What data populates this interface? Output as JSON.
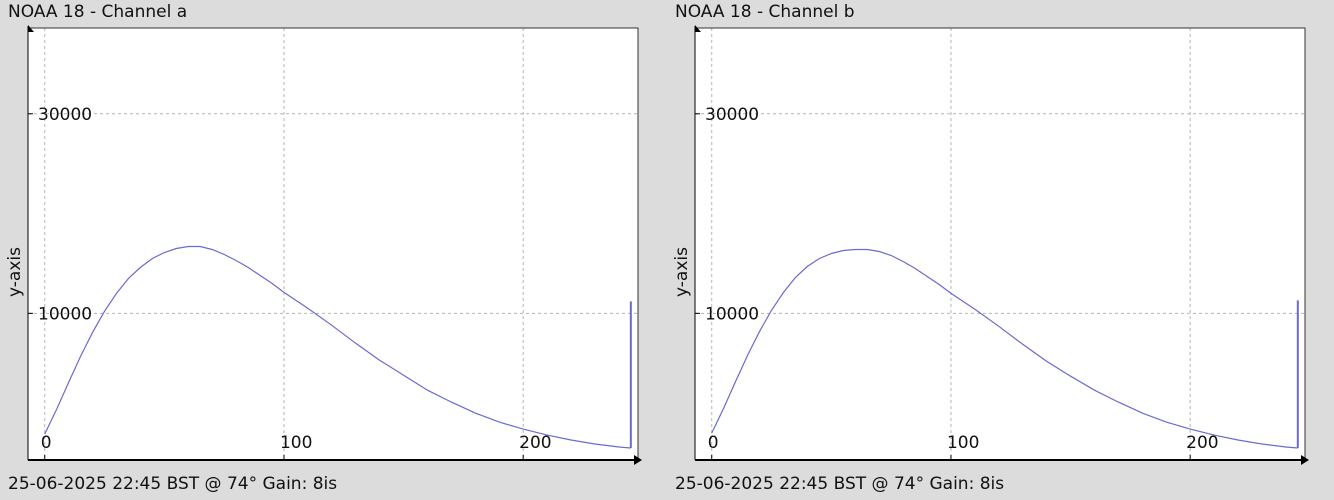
{
  "chart_data": [
    {
      "type": "line",
      "title": "NOAA 18 - Channel a",
      "xlabel": "",
      "ylabel": "y-axis",
      "footer": "25-06-2025 22:45 BST @ 74° Gain: 8is",
      "xlim": [
        -7,
        248
      ],
      "ylim": [
        -4700,
        38600
      ],
      "x_ticks": [
        0,
        100,
        200
      ],
      "y_ticks": [
        10000,
        30000
      ],
      "grid": true,
      "line_color": "#6a6ad2",
      "series": [
        {
          "x": [
            0,
            5,
            10,
            15,
            20,
            25,
            30,
            35,
            40,
            45,
            50,
            55,
            60,
            65,
            70,
            75,
            80,
            85,
            90,
            95,
            100,
            110,
            120,
            130,
            140,
            150,
            160,
            170,
            180,
            190,
            200,
            210,
            220,
            230,
            240,
            245
          ],
          "values": [
            -2100,
            400,
            3100,
            5700,
            8100,
            10200,
            12000,
            13500,
            14600,
            15500,
            16100,
            16500,
            16700,
            16700,
            16400,
            15900,
            15300,
            14600,
            13800,
            13000,
            12100,
            10500,
            8800,
            7000,
            5300,
            3800,
            2300,
            1100,
            0,
            -900,
            -1600,
            -2200,
            -2700,
            -3100,
            -3400,
            -3500
          ]
        }
      ],
      "end_spike": {
        "x": 245,
        "from": -3500,
        "to": 11200
      }
    },
    {
      "type": "line",
      "title": "NOAA 18 - Channel b",
      "xlabel": "",
      "ylabel": "y-axis",
      "footer": "25-06-2025 22:45 BST @ 74° Gain: 8is",
      "xlim": [
        -7,
        248
      ],
      "ylim": [
        -4700,
        38600
      ],
      "x_ticks": [
        0,
        100,
        200
      ],
      "y_ticks": [
        10000,
        30000
      ],
      "grid": true,
      "line_color": "#6a6ad2",
      "series": [
        {
          "x": [
            0,
            5,
            10,
            15,
            20,
            25,
            30,
            35,
            40,
            45,
            50,
            55,
            60,
            65,
            70,
            75,
            80,
            85,
            90,
            95,
            100,
            110,
            120,
            130,
            140,
            150,
            160,
            170,
            180,
            190,
            200,
            210,
            220,
            230,
            240,
            245
          ],
          "values": [
            -2000,
            500,
            3200,
            5800,
            8200,
            10300,
            12100,
            13600,
            14700,
            15500,
            16000,
            16300,
            16400,
            16400,
            16200,
            15800,
            15200,
            14500,
            13700,
            12900,
            12000,
            10400,
            8700,
            6900,
            5200,
            3700,
            2300,
            1100,
            0,
            -900,
            -1600,
            -2200,
            -2700,
            -3100,
            -3400,
            -3500
          ]
        }
      ],
      "end_spike": {
        "x": 245,
        "from": -3500,
        "to": 11300
      }
    }
  ]
}
